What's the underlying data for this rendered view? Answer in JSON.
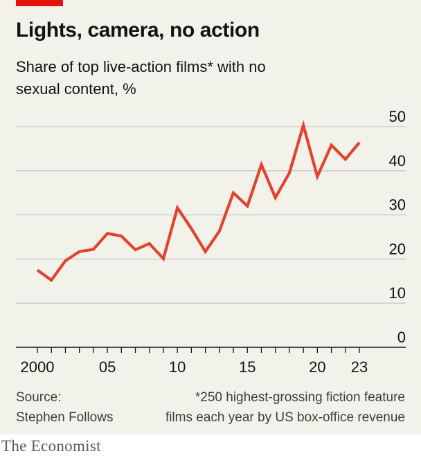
{
  "header": {
    "title": "Lights, camera, no action",
    "subtitle": "Share of top live-action films* with no sexual content, %"
  },
  "chart_data": {
    "type": "line",
    "title": "Lights, camera, no action",
    "subtitle": "Share of top live-action films* with no sexual content, %",
    "x": [
      2000,
      2001,
      2002,
      2003,
      2004,
      2005,
      2006,
      2007,
      2008,
      2009,
      2010,
      2011,
      2012,
      2013,
      2014,
      2015,
      2016,
      2017,
      2018,
      2019,
      2020,
      2021,
      2022,
      2023
    ],
    "series": [
      {
        "values": [
          17.5,
          15.2,
          19.6,
          21.7,
          22.2,
          25.8,
          25.2,
          22.1,
          23.5,
          20.1,
          31.6,
          26.9,
          21.7,
          26.3,
          35.0,
          32.0,
          41.4,
          33.9,
          39.5,
          50.3,
          38.7,
          45.8,
          42.6,
          46.4
        ]
      }
    ],
    "xticks": [
      2000,
      2005,
      2010,
      2015,
      2020,
      2023
    ],
    "xtick_labels": [
      "2000",
      "05",
      "10",
      "15",
      "20",
      "23"
    ],
    "yticks": [
      0,
      10,
      20,
      30,
      40,
      50
    ],
    "ytick_labels": [
      "0",
      "10",
      "20",
      "30",
      "40",
      "50"
    ],
    "ylim": [
      0,
      50
    ],
    "xlim": [
      2000,
      2023
    ],
    "grid": true,
    "colors": {
      "line": "#e3432d",
      "grid": "#c9c9c4",
      "axis": "#121212",
      "accent": "#e3120b"
    }
  },
  "footer": {
    "source_label": "Source:",
    "source_name": "Stephen Follows",
    "footnote_line1": "*250 highest-grossing fiction feature",
    "footnote_line2": "films each year by US box-office revenue",
    "brand": "The Economist"
  }
}
